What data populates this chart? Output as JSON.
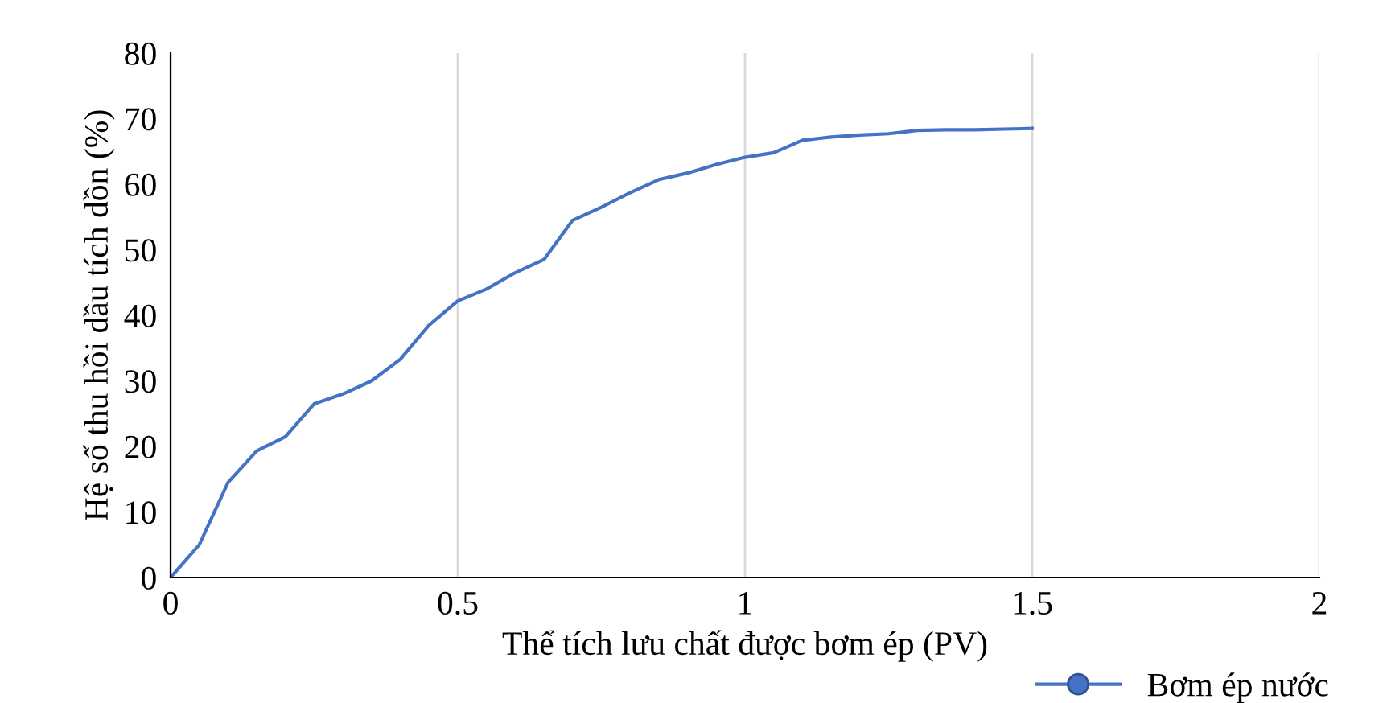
{
  "chart_data": {
    "type": "line",
    "xlabel": "Thể tích lưu chất được bơm ép (PV)",
    "ylabel": "Hệ số thu hồi dầu tích dồn (%)",
    "x": [
      0,
      0.05,
      0.1,
      0.15,
      0.2,
      0.25,
      0.3,
      0.35,
      0.4,
      0.45,
      0.5,
      0.55,
      0.6,
      0.65,
      0.7,
      0.75,
      0.8,
      0.85,
      0.9,
      0.95,
      1.0,
      1.05,
      1.1,
      1.15,
      1.2,
      1.25,
      1.3,
      1.35,
      1.4,
      1.45,
      1.5
    ],
    "series": [
      {
        "name": "Bơm ép nước",
        "color": "#4472c4",
        "values": [
          0,
          5,
          14.5,
          19.3,
          21.5,
          26.5,
          28,
          30,
          33.3,
          38.5,
          42.2,
          44,
          46.5,
          48.5,
          54.5,
          56.5,
          58.7,
          60.7,
          61.7,
          63,
          64.1,
          64.8,
          66.7,
          67.2,
          67.5,
          67.7,
          68.2,
          68.3,
          68.3,
          68.4,
          68.5
        ]
      }
    ],
    "xlim": [
      0,
      2
    ],
    "xticks": [
      0,
      0.5,
      1,
      1.5,
      2
    ],
    "ylim": [
      0,
      80
    ],
    "yticks": [
      0,
      10,
      20,
      30,
      40,
      50,
      60,
      70,
      80
    ],
    "grid": "x",
    "legend": "bottom right",
    "marker": "none",
    "line_style": "solid"
  }
}
